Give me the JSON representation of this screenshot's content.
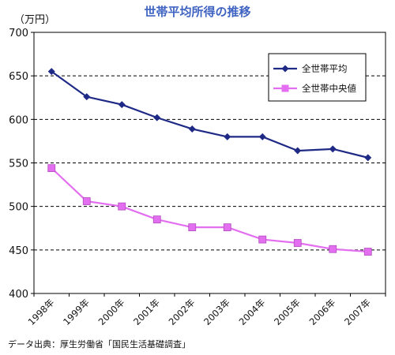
{
  "chart_data": {
    "type": "line",
    "title": "世帯平均所得の推移",
    "unit_label": "（万円）",
    "ylim": [
      400,
      700
    ],
    "yticks": [
      400,
      450,
      500,
      550,
      600,
      650,
      700
    ],
    "grid": "horizontal-dashed",
    "legend_position": "top-right",
    "categories": [
      "1998年",
      "1999年",
      "2000年",
      "2001年",
      "2002年",
      "2003年",
      "2004年",
      "2005年",
      "2006年",
      "2007年"
    ],
    "series": [
      {
        "name": "全世帯平均",
        "color": "#1f2a86",
        "marker": "diamond",
        "values": [
          655,
          626,
          617,
          602,
          589,
          580,
          580,
          564,
          566,
          556
        ]
      },
      {
        "name": "全世帯中央値",
        "color": "#e36ef0",
        "marker": "square",
        "values": [
          544,
          506,
          500,
          485,
          476,
          476,
          462,
          458,
          451,
          448
        ]
      }
    ]
  },
  "source_note": "データ出典：厚生労働省「国民生活基礎調査」"
}
